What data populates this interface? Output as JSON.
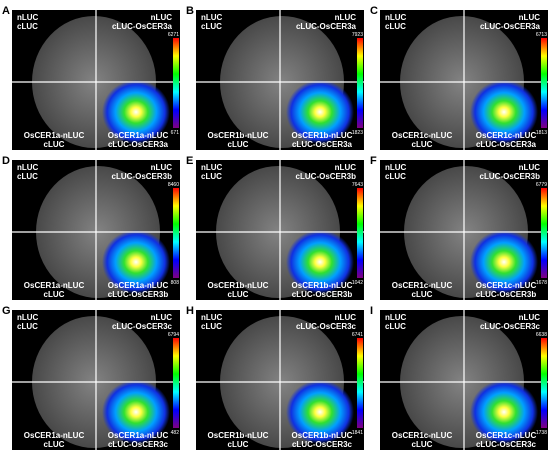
{
  "panels": [
    {
      "letter": "A",
      "top_left": [
        "nLUC",
        "cLUC"
      ],
      "top_right": [
        "nLUC",
        "cLUC-OsCER3a"
      ],
      "bottom_left": [
        "OsCER1a-nLUC",
        "cLUC"
      ],
      "bottom_right": [
        "OsCER1a-nLUC",
        "cLUC-OsCER3a"
      ],
      "scale_max": 6271,
      "scale_min": 671
    },
    {
      "letter": "B",
      "top_left": [
        "nLUC",
        "cLUC"
      ],
      "top_right": [
        "nLUC",
        "cLUC-OsCER3a"
      ],
      "bottom_left": [
        "OsCER1b-nLUC",
        "cLUC"
      ],
      "bottom_right": [
        "OsCER1b-nLUC",
        "cLUC-OsCER3a"
      ],
      "scale_max": 7923,
      "scale_min": 1823
    },
    {
      "letter": "C",
      "top_left": [
        "nLUC",
        "cLUC"
      ],
      "top_right": [
        "nLUC",
        "cLUC-OsCER3a"
      ],
      "bottom_left": [
        "OsCER1c-nLUC",
        "cLUC"
      ],
      "bottom_right": [
        "OsCER1c-nLUC",
        "cLUC-OsCER3a"
      ],
      "scale_max": 6713,
      "scale_min": 1813
    },
    {
      "letter": "D",
      "top_left": [
        "nLUC",
        "cLUC"
      ],
      "top_right": [
        "nLUC",
        "cLUC-OsCER3b"
      ],
      "bottom_left": [
        "OsCER1a-nLUC",
        "cLUC"
      ],
      "bottom_right": [
        "OsCER1a-nLUC",
        "cLUC-OsCER3b"
      ],
      "scale_max": 8460,
      "scale_min": 808
    },
    {
      "letter": "E",
      "top_left": [
        "nLUC",
        "cLUC"
      ],
      "top_right": [
        "nLUC",
        "cLUC-OsCER3b"
      ],
      "bottom_left": [
        "OsCER1b-nLUC",
        "cLUC"
      ],
      "bottom_right": [
        "OsCER1b-nLUC",
        "cLUC-OsCER3b"
      ],
      "scale_max": 7643,
      "scale_min": 1042
    },
    {
      "letter": "F",
      "top_left": [
        "nLUC",
        "cLUC"
      ],
      "top_right": [
        "nLUC",
        "cLUC-OsCER3b"
      ],
      "bottom_left": [
        "OsCER1c-nLUC",
        "cLUC"
      ],
      "bottom_right": [
        "OsCER1c-nLUC",
        "cLUC-OsCER3b"
      ],
      "scale_max": 6779,
      "scale_min": 1678
    },
    {
      "letter": "G",
      "top_left": [
        "nLUC",
        "cLUC"
      ],
      "top_right": [
        "nLUC",
        "cLUC-OsCER3c"
      ],
      "bottom_left": [
        "OsCER1a-nLUC",
        "cLUC"
      ],
      "bottom_right": [
        "OsCER1a-nLUC",
        "cLUC-OsCER3c"
      ],
      "scale_max": 6794,
      "scale_min": 482
    },
    {
      "letter": "H",
      "top_left": [
        "nLUC",
        "cLUC"
      ],
      "top_right": [
        "nLUC",
        "cLUC-OsCER3c"
      ],
      "bottom_left": [
        "OsCER1b-nLUC",
        "cLUC"
      ],
      "bottom_right": [
        "OsCER1b-nLUC",
        "cLUC-OsCER3c"
      ],
      "scale_max": 6741,
      "scale_min": 1841
    },
    {
      "letter": "I",
      "top_left": [
        "nLUC",
        "cLUC"
      ],
      "top_right": [
        "nLUC",
        "cLUC-OsCER3c"
      ],
      "bottom_left": [
        "OsCER1c-nLUC",
        "cLUC"
      ],
      "bottom_right": [
        "OsCER1c-nLUC",
        "cLUC-OsCER3c"
      ],
      "scale_max": 6638,
      "scale_min": 1738
    }
  ]
}
